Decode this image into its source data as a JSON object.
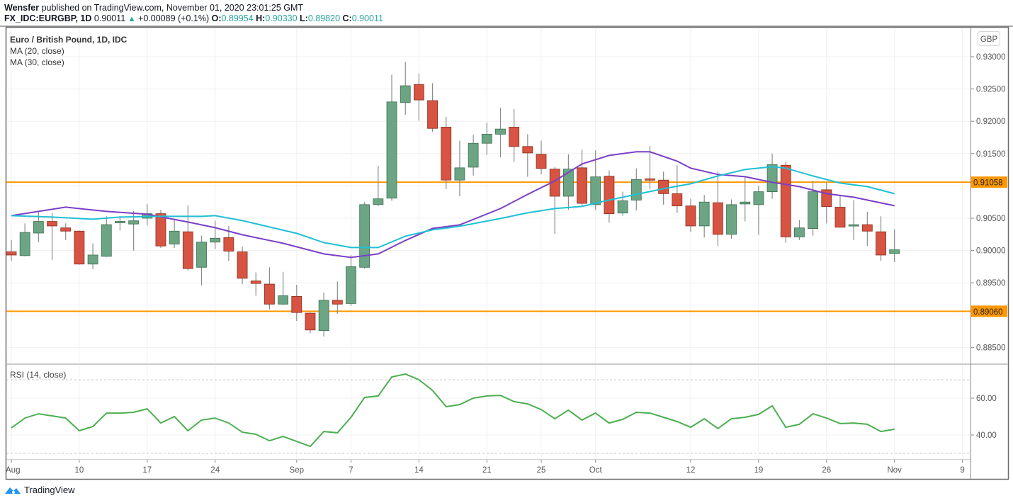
{
  "header": {
    "author": "Wensfer",
    "published_text": "published on TradingView.com, November 01, 2020 23:01:25 GMT",
    "symbol": "FX_IDC:EURGBP, 1D",
    "last": "0.90011",
    "change": "+0.00089 (+0.1%)",
    "o_label": "O:",
    "o": "0.89954",
    "h_label": "H:",
    "h": "0.90330",
    "l_label": "L:",
    "l": "0.89820",
    "c_label": "C:",
    "c": "0.90011"
  },
  "legend": {
    "title": "Euro / British Pound, 1D, IDC",
    "ma1": "MA (20, close)",
    "ma2": "MA (30, close)",
    "rsi": "RSI (14, close)"
  },
  "currency_button": "GBP",
  "footer": {
    "brand": "TradingView"
  },
  "colors": {
    "up": "#6ba583",
    "down": "#d75442",
    "ma20": "#7b3fc7",
    "ma30": "#1fc0d4",
    "hline": "#ff9800",
    "rsi": "#4caf50"
  },
  "chart_data": [
    {
      "type": "candlestick",
      "title": "Euro / British Pound, 1D, IDC",
      "ylim": [
        0.8815,
        0.934
      ],
      "y_ticks": [
        "0.93000",
        "0.92500",
        "0.92000",
        "0.91500",
        "0.90500",
        "0.90000",
        "0.89500",
        "0.88500"
      ],
      "y_tick_values": [
        0.93,
        0.925,
        0.92,
        0.915,
        0.905,
        0.9,
        0.895,
        0.885
      ],
      "x_ticks": [
        {
          "label": "Aug",
          "index": 0
        },
        {
          "label": "10",
          "index": 5
        },
        {
          "label": "17",
          "index": 10
        },
        {
          "label": "24",
          "index": 15
        },
        {
          "label": "Sep",
          "index": 21
        },
        {
          "label": "7",
          "index": 25
        },
        {
          "label": "14",
          "index": 30
        },
        {
          "label": "21",
          "index": 35
        },
        {
          "label": "25",
          "index": 39
        },
        {
          "label": "Oct",
          "index": 43
        },
        {
          "label": "12",
          "index": 50
        },
        {
          "label": "19",
          "index": 55
        },
        {
          "label": "26",
          "index": 60
        },
        {
          "label": "Nov",
          "index": 65
        },
        {
          "label": "9",
          "index": 70
        }
      ],
      "horizontal_lines": [
        {
          "value": 0.91058,
          "label": "0.91058"
        },
        {
          "value": 0.8906,
          "label": "0.89060"
        }
      ],
      "ohlc": [
        [
          0.8998,
          0.9016,
          0.8984,
          0.8993
        ],
        [
          0.8992,
          0.9042,
          0.8991,
          0.9028
        ],
        [
          0.9027,
          0.906,
          0.9013,
          0.9045
        ],
        [
          0.9045,
          0.9058,
          0.8985,
          0.9038
        ],
        [
          0.9035,
          0.9042,
          0.9016,
          0.903
        ],
        [
          0.903,
          0.9031,
          0.8978,
          0.8979
        ],
        [
          0.8979,
          0.9011,
          0.8971,
          0.8993
        ],
        [
          0.8991,
          0.9053,
          0.899,
          0.904
        ],
        [
          0.9043,
          0.9053,
          0.9031,
          0.9045
        ],
        [
          0.9041,
          0.9061,
          0.9,
          0.9046
        ],
        [
          0.905,
          0.9072,
          0.9039,
          0.9057
        ],
        [
          0.9057,
          0.9063,
          0.9004,
          0.9007
        ],
        [
          0.901,
          0.9047,
          0.9004,
          0.903
        ],
        [
          0.9029,
          0.907,
          0.8969,
          0.8972
        ],
        [
          0.8974,
          0.9023,
          0.8946,
          0.9013
        ],
        [
          0.9013,
          0.9046,
          0.9002,
          0.9019
        ],
        [
          0.902,
          0.9038,
          0.8984,
          0.8999
        ],
        [
          0.8998,
          0.9006,
          0.8948,
          0.8957
        ],
        [
          0.8953,
          0.8966,
          0.893,
          0.8949
        ],
        [
          0.8948,
          0.8974,
          0.8909,
          0.8917
        ],
        [
          0.8917,
          0.8967,
          0.8916,
          0.893
        ],
        [
          0.8929,
          0.8947,
          0.8891,
          0.8904
        ],
        [
          0.8903,
          0.8904,
          0.8872,
          0.8877
        ],
        [
          0.8876,
          0.8935,
          0.8867,
          0.8923
        ],
        [
          0.8923,
          0.8952,
          0.8902,
          0.8917
        ],
        [
          0.8918,
          0.8993,
          0.8914,
          0.8975
        ],
        [
          0.8974,
          0.9075,
          0.8972,
          0.9071
        ],
        [
          0.9071,
          0.9131,
          0.9069,
          0.908
        ],
        [
          0.9081,
          0.9272,
          0.9077,
          0.923
        ],
        [
          0.9229,
          0.9292,
          0.921,
          0.9255
        ],
        [
          0.9257,
          0.9274,
          0.9201,
          0.9233
        ],
        [
          0.9232,
          0.9259,
          0.9184,
          0.9189
        ],
        [
          0.9191,
          0.9207,
          0.9095,
          0.9109
        ],
        [
          0.9109,
          0.917,
          0.9084,
          0.9128
        ],
        [
          0.9129,
          0.9179,
          0.9116,
          0.9166
        ],
        [
          0.9166,
          0.9198,
          0.9148,
          0.918
        ],
        [
          0.918,
          0.9221,
          0.9144,
          0.9188
        ],
        [
          0.9191,
          0.9219,
          0.9137,
          0.9161
        ],
        [
          0.9161,
          0.918,
          0.9114,
          0.9151
        ],
        [
          0.9149,
          0.917,
          0.9118,
          0.9127
        ],
        [
          0.9126,
          0.9129,
          0.9026,
          0.9084
        ],
        [
          0.9084,
          0.9149,
          0.9063,
          0.9126
        ],
        [
          0.9128,
          0.9156,
          0.9068,
          0.9073
        ],
        [
          0.9071,
          0.9155,
          0.9063,
          0.9114
        ],
        [
          0.9115,
          0.9124,
          0.9043,
          0.9057
        ],
        [
          0.9058,
          0.9091,
          0.9054,
          0.9077
        ],
        [
          0.9078,
          0.9127,
          0.9062,
          0.911
        ],
        [
          0.9111,
          0.9162,
          0.9095,
          0.9109
        ],
        [
          0.9109,
          0.9122,
          0.9071,
          0.9088
        ],
        [
          0.9088,
          0.9132,
          0.9058,
          0.9069
        ],
        [
          0.9069,
          0.908,
          0.9029,
          0.9038
        ],
        [
          0.9038,
          0.9086,
          0.902,
          0.9075
        ],
        [
          0.9074,
          0.9122,
          0.9007,
          0.9025
        ],
        [
          0.9025,
          0.9079,
          0.9018,
          0.9071
        ],
        [
          0.9072,
          0.9114,
          0.9045,
          0.9075
        ],
        [
          0.9071,
          0.91,
          0.9024,
          0.9091
        ],
        [
          0.9091,
          0.915,
          0.908,
          0.9133
        ],
        [
          0.9132,
          0.9137,
          0.9012,
          0.9021
        ],
        [
          0.9021,
          0.9047,
          0.9016,
          0.9035
        ],
        [
          0.9034,
          0.9108,
          0.9023,
          0.9091
        ],
        [
          0.9094,
          0.9106,
          0.9042,
          0.9068
        ],
        [
          0.9067,
          0.9085,
          0.9036,
          0.9036
        ],
        [
          0.9038,
          0.9078,
          0.9016,
          0.904
        ],
        [
          0.904,
          0.906,
          0.9007,
          0.903
        ],
        [
          0.9029,
          0.9053,
          0.8984,
          0.8993
        ],
        [
          0.89954,
          0.9033,
          0.8982,
          0.90011
        ]
      ],
      "series": [
        {
          "name": "MA (20, close)",
          "knots": [
            [
              0,
              0.90539
            ],
            [
              4,
              0.90671
            ],
            [
              7,
              0.90605
            ],
            [
              10,
              0.90561
            ],
            [
              13,
              0.90441
            ],
            [
              15,
              0.90353
            ],
            [
              17,
              0.90243
            ],
            [
              20,
              0.90112
            ],
            [
              23,
              0.89947
            ],
            [
              25,
              0.89893
            ],
            [
              27,
              0.89947
            ],
            [
              29,
              0.90156
            ],
            [
              31,
              0.90342
            ],
            [
              33,
              0.90397
            ],
            [
              36,
              0.90649
            ],
            [
              38,
              0.90868
            ],
            [
              40,
              0.91077
            ],
            [
              42,
              0.9134
            ],
            [
              44,
              0.91472
            ],
            [
              46,
              0.91527
            ],
            [
              47,
              0.91527
            ],
            [
              49,
              0.91384
            ],
            [
              50,
              0.91275
            ],
            [
              52,
              0.91176
            ],
            [
              54,
              0.91143
            ],
            [
              56,
              0.91055
            ],
            [
              58,
              0.90989
            ],
            [
              60,
              0.90879
            ],
            [
              62,
              0.90825
            ],
            [
              65,
              0.90693
            ]
          ]
        },
        {
          "name": "MA (30, close)",
          "knots": [
            [
              0,
              0.90539
            ],
            [
              3,
              0.90518
            ],
            [
              6,
              0.90485
            ],
            [
              8,
              0.90518
            ],
            [
              11,
              0.90529
            ],
            [
              14,
              0.90529
            ],
            [
              15,
              0.90539
            ],
            [
              17,
              0.90463
            ],
            [
              19,
              0.90364
            ],
            [
              21,
              0.90265
            ],
            [
              23,
              0.90123
            ],
            [
              25,
              0.90046
            ],
            [
              27,
              0.90046
            ],
            [
              29,
              0.90221
            ],
            [
              31,
              0.9032
            ],
            [
              33,
              0.90375
            ],
            [
              36,
              0.90496
            ],
            [
              38,
              0.90583
            ],
            [
              40,
              0.90649
            ],
            [
              42,
              0.90682
            ],
            [
              44,
              0.90781
            ],
            [
              46,
              0.90868
            ],
            [
              48,
              0.90956
            ],
            [
              50,
              0.91033
            ],
            [
              52,
              0.91154
            ],
            [
              54,
              0.91253
            ],
            [
              56,
              0.91296
            ],
            [
              57,
              0.91275
            ],
            [
              59,
              0.91154
            ],
            [
              61,
              0.91044
            ],
            [
              63,
              0.90989
            ],
            [
              65,
              0.90879
            ]
          ]
        }
      ]
    },
    {
      "type": "line",
      "title": "RSI (14, close)",
      "ylim": [
        27.5,
        78
      ],
      "y_ticks": [
        "60.00",
        "40.00"
      ],
      "y_tick_values": [
        60,
        40
      ],
      "bands": [
        70,
        30
      ],
      "values": [
        43.8,
        49.2,
        51.5,
        50.4,
        49.2,
        42.3,
        44.6,
        51.9,
        51.9,
        52.3,
        54.2,
        46.5,
        50.0,
        42.3,
        48.1,
        49.2,
        46.5,
        41.5,
        40.4,
        36.9,
        39.2,
        36.5,
        33.8,
        41.9,
        41.2,
        49.6,
        60.4,
        61.2,
        71.5,
        73.1,
        70.0,
        64.2,
        55.4,
        56.5,
        60.0,
        61.2,
        61.5,
        58.1,
        56.9,
        53.8,
        48.8,
        53.5,
        48.1,
        51.9,
        46.5,
        48.5,
        52.3,
        51.9,
        49.6,
        47.3,
        44.2,
        48.8,
        43.5,
        48.8,
        49.6,
        51.2,
        55.8,
        44.2,
        45.8,
        51.5,
        49.2,
        46.2,
        46.5,
        45.8,
        41.9,
        43.1
      ]
    }
  ]
}
